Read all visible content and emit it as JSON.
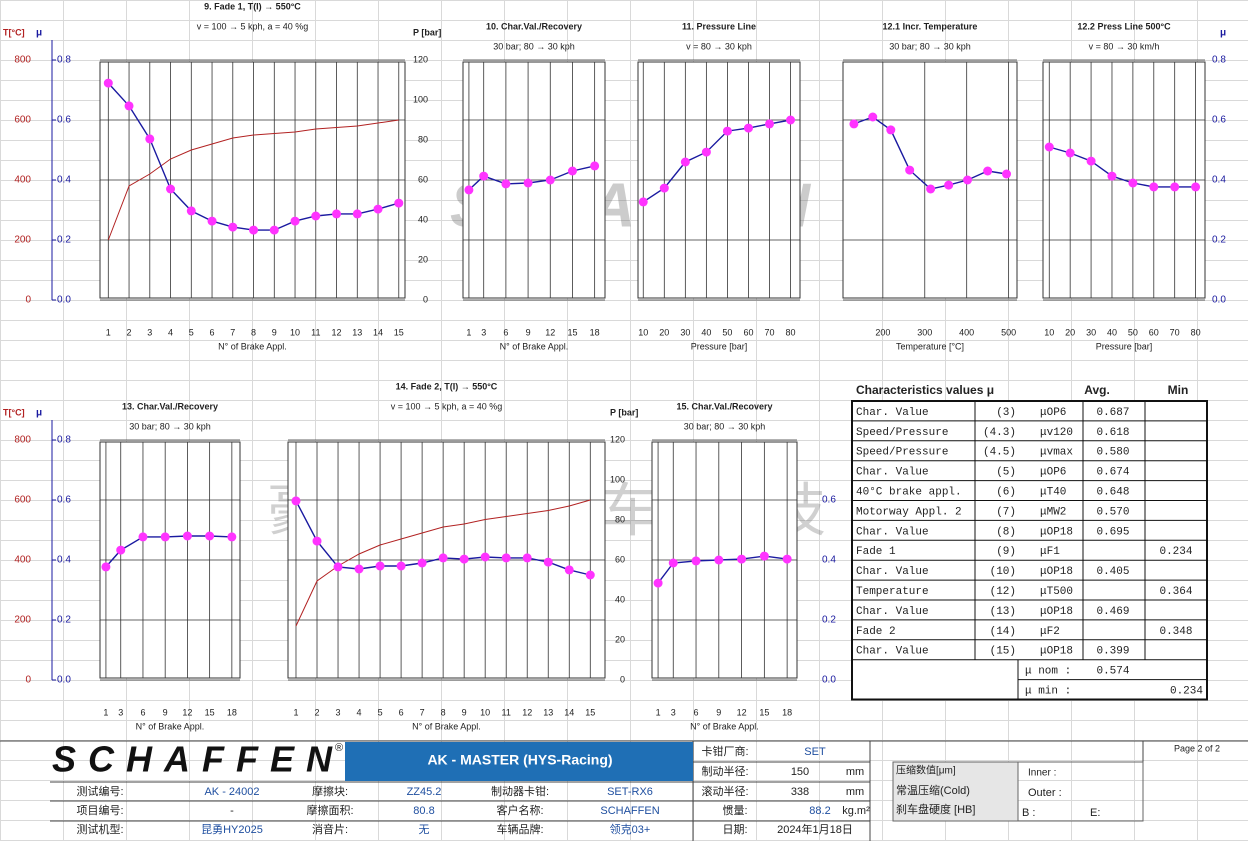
{
  "watermarks": {
    "company": "北京豪艺思汽车科技有限公司",
    "brand": "SCHAFFEN"
  },
  "colors": {
    "mu": "#1a1aa0",
    "marker": "#ff33ff",
    "temperature": "#b22222"
  },
  "axes_top": {
    "temp_label": "T[°C]",
    "temp_lim": [
      0,
      800
    ],
    "temp_ticks": [
      800,
      600,
      400,
      200,
      0
    ],
    "mu_label": "μ",
    "mu_lim": [
      0,
      0.8
    ],
    "mu_ticks": [
      0.8,
      0.6,
      0.4,
      0.2,
      {
        "value": 0,
        "label": "0.0"
      }
    ],
    "p_label": "P [bar]",
    "p_lim": [
      0,
      120
    ],
    "p_ticks": [
      120,
      100,
      80,
      60,
      40,
      20,
      0
    ],
    "mu_right_label": "μ",
    "mu_right_ticks": [
      0.8,
      0.6,
      0.4,
      0.2,
      {
        "value": 0,
        "label": "0.0"
      }
    ]
  },
  "axes_bottom": {
    "temp_label": "T[°C]",
    "temp_lim": [
      0,
      800
    ],
    "temp_ticks": [
      800,
      600,
      400,
      200,
      0
    ],
    "mu_label": "μ",
    "mu_lim": [
      0,
      0.8
    ],
    "mu_ticks": [
      0.8,
      0.6,
      0.4,
      0.2,
      {
        "value": 0,
        "label": "0.0"
      }
    ],
    "p_label": "P [bar]",
    "p_lim": [
      0,
      120
    ],
    "p_ticks": [
      120,
      100,
      80,
      60,
      40,
      20,
      0
    ],
    "mu_right_ticks": [
      0.6,
      0.4,
      0.2,
      {
        "value": 0,
        "label": "0.0"
      }
    ]
  },
  "top_panels": [
    {
      "title": "9. Fade 1, T(I) → 550°C",
      "subtitle": "v = 100 → 5 kph, a = 40 %g",
      "x_label": "N° of Brake Appl.",
      "xlim": [
        0.6,
        15.3
      ],
      "xticks": [
        1,
        2,
        3,
        4,
        5,
        6,
        7,
        8,
        9,
        10,
        11,
        12,
        13,
        14,
        15
      ],
      "mu": {
        "x": [
          1,
          2,
          3,
          4,
          5,
          6,
          7,
          8,
          9,
          10,
          11,
          12,
          13,
          14,
          15
        ],
        "values": [
          0.723,
          0.647,
          0.537,
          0.37,
          0.297,
          0.263,
          0.243,
          0.233,
          0.233,
          0.263,
          0.28,
          0.287,
          0.287,
          0.303,
          0.323
        ]
      },
      "temperature": [
        200,
        380,
        420,
        470,
        500,
        520,
        540,
        550,
        555,
        560,
        570,
        575,
        580,
        590,
        600
      ]
    },
    {
      "title": "10. Char.Val./Recovery",
      "subtitle": "30 bar; 80 → 30 kph",
      "x_label": "N° of Brake Appl.",
      "xlim": [
        0.2,
        19.4
      ],
      "xticks": [
        1,
        3,
        6,
        9,
        12,
        15,
        18
      ],
      "mu": {
        "x": [
          1,
          3,
          6,
          9,
          12,
          15,
          18
        ],
        "values": [
          0.367,
          0.413,
          0.387,
          0.39,
          0.4,
          0.43,
          0.447
        ]
      }
    },
    {
      "title": "11. Pressure Line",
      "subtitle": "v = 80 → 30 kph",
      "x_label": "Pressure [bar]",
      "xlim": [
        7.5,
        84.5
      ],
      "xticks": [
        10,
        20,
        30,
        40,
        50,
        60,
        70,
        80
      ],
      "mu": {
        "x": [
          10,
          20,
          30,
          40,
          50,
          60,
          70,
          80
        ],
        "values": [
          0.327,
          0.373,
          0.46,
          0.493,
          0.563,
          0.573,
          0.587,
          0.6
        ]
      }
    },
    {
      "title": "12.1 Incr. Temperature",
      "subtitle": "30 bar; 80 → 30 kph",
      "x_label": "Temperature [°C]",
      "xlim": [
        105,
        520
      ],
      "xticks": [
        200,
        300,
        400,
        500
      ],
      "mu": {
        "x": [
          131,
          176,
          219,
          264,
          314,
          357,
          402,
          450,
          495
        ],
        "values": [
          0.587,
          0.61,
          0.567,
          0.433,
          0.37,
          0.383,
          0.4,
          0.43,
          0.42
        ]
      }
    },
    {
      "title": "12.2  Press Line 500°C",
      "subtitle": "v = 80 → 30 km/h",
      "x_label": "Pressure [bar]",
      "xlim": [
        7,
        84.5
      ],
      "xticks": [
        10,
        20,
        30,
        40,
        50,
        60,
        70,
        80
      ],
      "mu": {
        "x": [
          10,
          20,
          30,
          40,
          50,
          60,
          70,
          80
        ],
        "values": [
          0.51,
          0.49,
          0.463,
          0.413,
          0.39,
          0.377,
          0.377,
          0.377
        ]
      }
    }
  ],
  "bottom_panels": [
    {
      "title": "13. Char.Val./Recovery",
      "subtitle": "30 bar; 80 → 30 kph",
      "x_label": "N° of Brake Appl.",
      "xlim": [
        0.2,
        19.1
      ],
      "xticks": [
        1,
        3,
        6,
        9,
        12,
        15,
        18
      ],
      "mu": {
        "x": [
          1,
          3,
          6,
          9,
          12,
          15,
          18
        ],
        "values": [
          0.377,
          0.433,
          0.477,
          0.477,
          0.48,
          0.48,
          0.477
        ]
      }
    },
    {
      "title": "14. Fade 2, T(I)  → 550°C",
      "subtitle": "v = 100 → 5 kph, a = 40 %g",
      "x_label": "N° of Brake Appl.",
      "xlim": [
        0.62,
        15.7
      ],
      "xticks": [
        1,
        2,
        3,
        4,
        5,
        6,
        7,
        8,
        9,
        10,
        11,
        12,
        13,
        14,
        15
      ],
      "mu": {
        "x": [
          1,
          2,
          3,
          4,
          5,
          6,
          7,
          8,
          9,
          10,
          11,
          12,
          13,
          14,
          15
        ],
        "values": [
          0.597,
          0.463,
          0.377,
          0.37,
          0.38,
          0.38,
          0.39,
          0.407,
          0.403,
          0.41,
          0.407,
          0.407,
          0.393,
          0.367,
          0.35
        ]
      },
      "temperature": [
        180,
        330,
        380,
        420,
        450,
        470,
        490,
        510,
        520,
        535,
        545,
        555,
        565,
        580,
        600
      ]
    },
    {
      "title": "15. Char.Val./Recovery",
      "subtitle": "30 bar; 80 → 30 kph",
      "x_label": "N° of Brake Appl.",
      "xlim": [
        0.2,
        19.3
      ],
      "xticks": [
        1,
        3,
        6,
        9,
        12,
        15,
        18
      ],
      "mu": {
        "x": [
          1,
          3,
          6,
          9,
          12,
          15,
          18
        ],
        "values": [
          0.323,
          0.39,
          0.397,
          0.4,
          0.403,
          0.413,
          0.403
        ]
      }
    }
  ],
  "table": {
    "title": "Characteristics values μ",
    "avg_header": "Avg.",
    "min_header": "Min",
    "rows": [
      {
        "label": "Char. Value",
        "ref": "(3)",
        "code": "μOP6",
        "avg": "0.687"
      },
      {
        "label": "Speed/Pressure",
        "ref": "(4.3)",
        "code": "μv120",
        "avg": "0.618"
      },
      {
        "label": "Speed/Pressure",
        "ref": "(4.5)",
        "code": "μvmax",
        "avg": "0.580"
      },
      {
        "label": "Char. Value",
        "ref": "(5)",
        "code": "μOP6",
        "avg": "0.674"
      },
      {
        "label": "40°C brake appl.",
        "ref": "(6)",
        "code": "μT40",
        "avg": "0.648"
      },
      {
        "label": "Motorway Appl. 2",
        "ref": "(7)",
        "code": "μMW2",
        "avg": "0.570"
      },
      {
        "label": "Char. Value",
        "ref": "(8)",
        "code": "μOP18",
        "avg": "0.695"
      },
      {
        "label": "Fade 1",
        "ref": "(9)",
        "code": "μF1",
        "min": "0.234"
      },
      {
        "label": "Char. Value",
        "ref": "(10)",
        "code": "μOP18",
        "avg": "0.405"
      },
      {
        "label": "Temperature",
        "ref": "(12)",
        "code": "μT500",
        "min": "0.364"
      },
      {
        "label": "Char. Value",
        "ref": "(13)",
        "code": "μOP18",
        "avg": "0.469"
      },
      {
        "label": "Fade 2",
        "ref": "(14)",
        "code": "μF2",
        "min": "0.348"
      },
      {
        "label": "Char. Value",
        "ref": "(15)",
        "code": "μOP18",
        "avg": "0.399"
      }
    ],
    "nom_label": "μ nom :",
    "nom_value": "0.574",
    "min_label": "μ min :",
    "min_value": "0.234"
  },
  "footer": {
    "logo": "SCHAFFEN",
    "logo_mark": "®",
    "title": "AK - MASTER  (HYS-Racing)",
    "page": "Page 2 of 2",
    "cells": [
      "卡钳厂商:",
      "SET",
      "制动半径:",
      "150",
      "mm",
      "测试编号:",
      "AK - 24002",
      "摩擦块:",
      "ZZ45.2",
      "制动器卡钳:",
      "SET-RX6",
      "滚动半径:",
      "338",
      "mm",
      "项目编号:",
      "-",
      "摩擦面积:",
      "80.8",
      "客户名称:",
      "SCHAFFEN",
      "惯量:",
      "88.2",
      "kg.m²",
      "测试机型:",
      "昆勇HY2025",
      "消音片:",
      "无",
      "车辆品牌:",
      "领克03+",
      "日期:",
      "2024年1月18日",
      "压缩数值[μm]",
      "常温压缩(Cold)",
      "刹车盘硬度 [HB]",
      "Inner :",
      "Outer :",
      "B :",
      "E:"
    ]
  }
}
